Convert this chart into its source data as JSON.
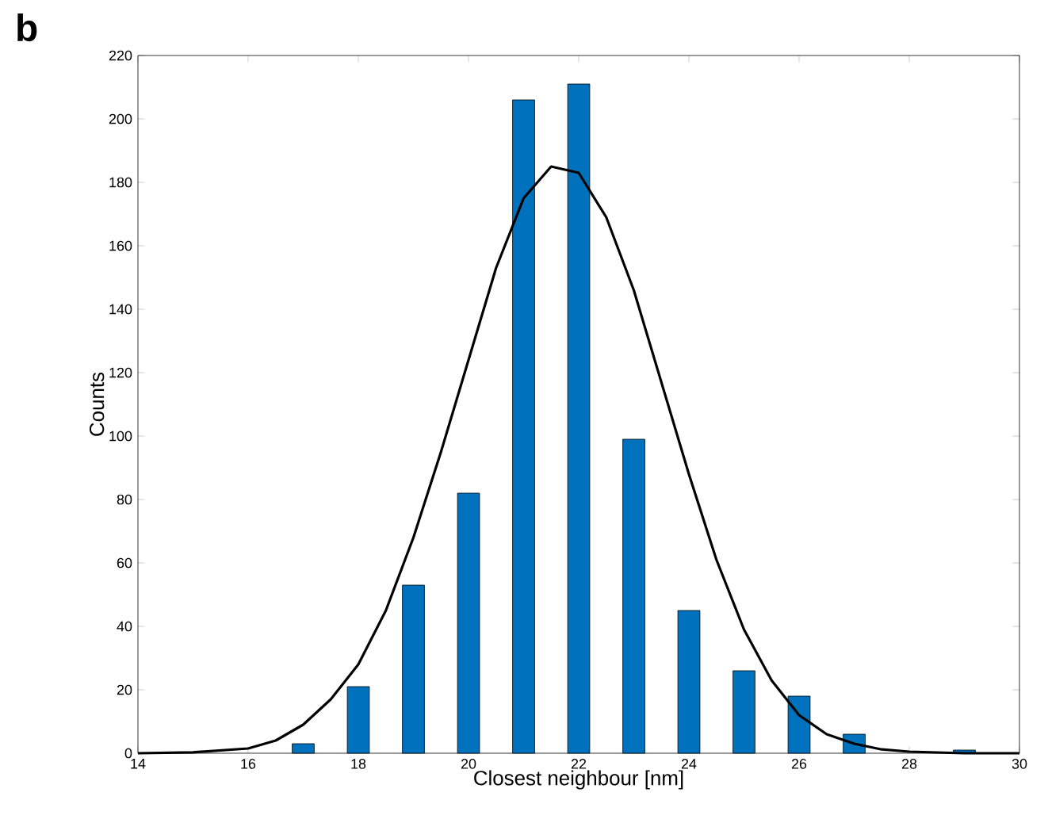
{
  "chart_data": {
    "type": "bar",
    "xlabel": "Closest neighbour [nm]",
    "ylabel": "Counts",
    "annotations": [
      "b"
    ],
    "xlim": [
      14,
      30
    ],
    "ylim": [
      0,
      220
    ],
    "xticks": [
      14,
      16,
      18,
      20,
      22,
      24,
      26,
      28,
      30
    ],
    "yticks": [
      0,
      20,
      40,
      60,
      80,
      100,
      120,
      140,
      160,
      180,
      200,
      220
    ],
    "series": [
      {
        "color": "#0072bd",
        "x": [
          17,
          18,
          19,
          20,
          21,
          22,
          23,
          24,
          25,
          26,
          27,
          29
        ],
        "values": [
          3,
          21,
          53,
          82,
          206,
          211,
          99,
          45,
          26,
          18,
          6,
          1
        ]
      },
      {
        "type": "line",
        "color": "#000000",
        "x": [
          14,
          15,
          16,
          16.5,
          17,
          17.5,
          18,
          18.5,
          19,
          19.5,
          20,
          20.5,
          21,
          21.5,
          22,
          22.5,
          23,
          23.5,
          24,
          24.5,
          25,
          25.5,
          26,
          26.5,
          27,
          27.5,
          28,
          29,
          30
        ],
        "values": [
          0,
          0.3,
          1.5,
          4,
          9,
          17,
          28,
          45,
          68,
          95,
          124,
          153,
          175,
          185,
          183,
          169,
          146,
          117,
          88,
          61,
          39,
          23,
          12,
          6,
          3,
          1.2,
          0.5,
          0,
          0
        ]
      }
    ]
  }
}
